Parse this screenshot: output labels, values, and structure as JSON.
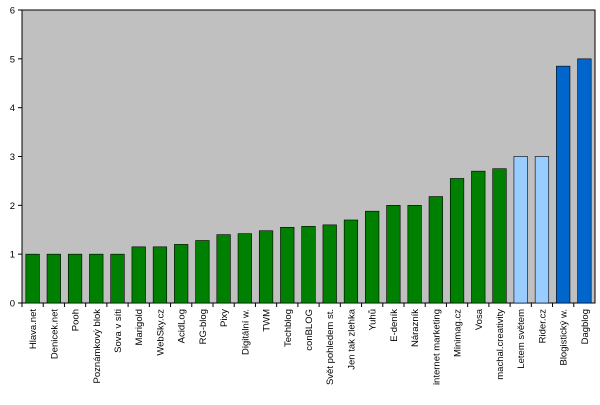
{
  "chart_data": {
    "type": "bar",
    "categories": [
      "Hlava.net",
      "Denicek.net",
      "Pooh",
      "Poznámkový blok",
      "Sova v síti",
      "Marigold",
      "WebSky.cz",
      "AcidLog",
      "RG-blog",
      "Pixy",
      "Digitální w.",
      "TWM",
      "Techblog",
      "conBLOG",
      "Svět pohledem st.",
      "Jen tak zlehka",
      "Yuhů",
      "E-deník",
      "Nárazník",
      "internet marketing",
      "Minimag.cz",
      "Vosa",
      "machal.creativity",
      "Letem světem",
      "Rider.cz",
      "Blogistický w.",
      "Dagblog"
    ],
    "values": [
      1,
      1,
      1,
      1,
      1,
      1.15,
      1.15,
      1.2,
      1.28,
      1.4,
      1.42,
      1.48,
      1.55,
      1.57,
      1.6,
      1.7,
      1.88,
      2,
      2,
      2.18,
      2.55,
      2.7,
      2.75,
      3,
      3,
      4.85,
      5
    ],
    "colors": [
      "#008000",
      "#008000",
      "#008000",
      "#008000",
      "#008000",
      "#008000",
      "#008000",
      "#008000",
      "#008000",
      "#008000",
      "#008000",
      "#008000",
      "#008000",
      "#008000",
      "#008000",
      "#008000",
      "#008000",
      "#008000",
      "#008000",
      "#008000",
      "#008000",
      "#008000",
      "#008000",
      "#99ccff",
      "#99ccff",
      "#0066cc",
      "#0066cc"
    ],
    "ylim": [
      0,
      6
    ],
    "yticks": [
      0,
      1,
      2,
      3,
      4,
      5,
      6
    ],
    "grid": false
  }
}
